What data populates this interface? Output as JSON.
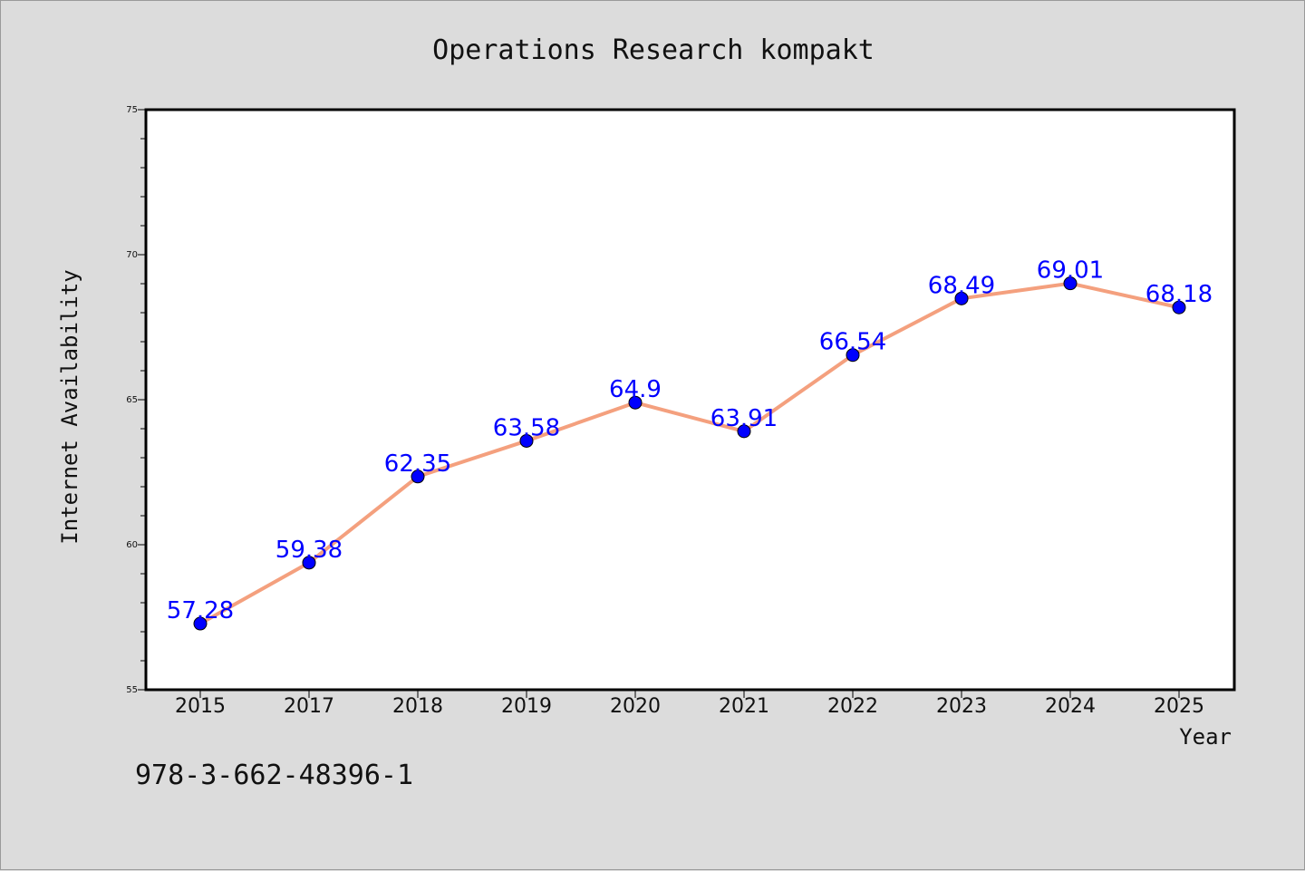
{
  "chart_data": {
    "type": "line",
    "title": "Operations Research kompakt",
    "xlabel": "Year",
    "ylabel": "Internet Availability",
    "categories": [
      "2015",
      "2017",
      "2018",
      "2019",
      "2020",
      "2021",
      "2022",
      "2023",
      "2024",
      "2025"
    ],
    "series": [
      {
        "values": [
          57.28,
          59.38,
          62.35,
          63.58,
          64.9,
          63.91,
          66.54,
          68.49,
          69.01,
          68.18
        ],
        "labels": [
          "57.28",
          "59.38",
          "62.35",
          "63.58",
          "64.9",
          "63.91",
          "66.54",
          "68.49",
          "69.01",
          "68.18"
        ],
        "line_color": "#f4a07e",
        "marker_color": "#0000ff"
      }
    ],
    "ylim": [
      55,
      75
    ],
    "yticks": [
      "55",
      "60",
      "65",
      "70",
      "75"
    ],
    "grid": false,
    "legend": "none",
    "background": "#dcdcdc",
    "plot_background": "#ffffff"
  },
  "footer_text": "978-3-662-48396-1"
}
